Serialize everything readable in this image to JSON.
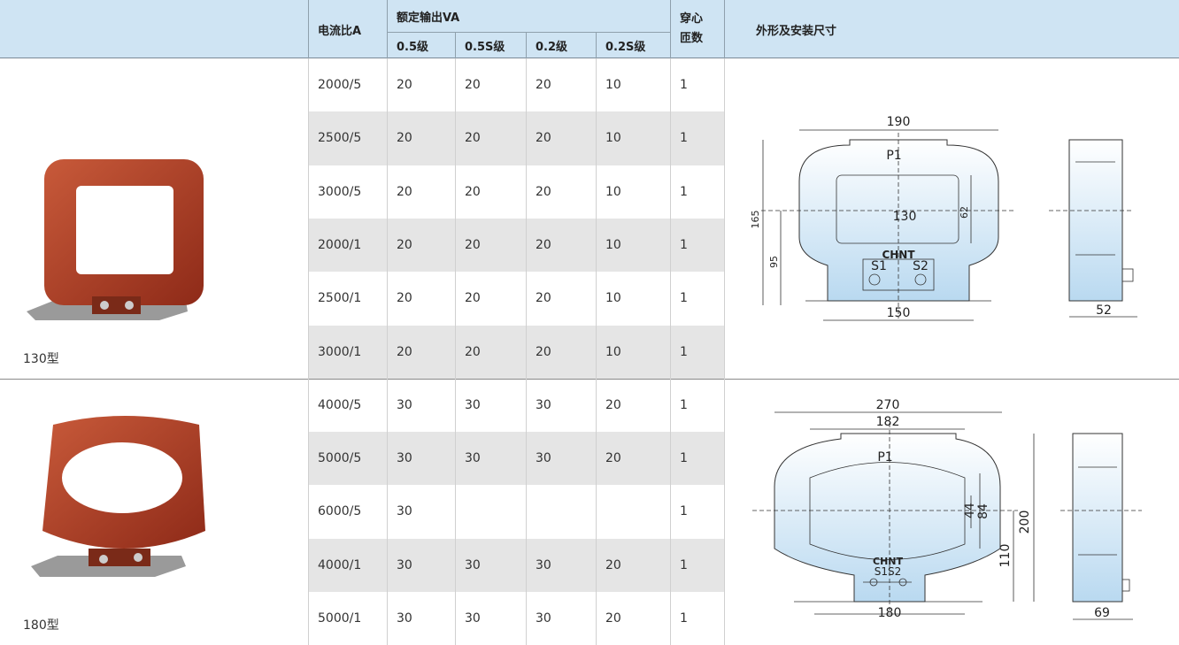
{
  "header": {
    "ratio": "电流比A",
    "rated": "额定输出VA",
    "classes": [
      "0.5级",
      "0.5S级",
      "0.2级",
      "0.2S级"
    ],
    "turns": [
      "穿心",
      "匝数"
    ],
    "dims": "外形及安装尺寸"
  },
  "groups": [
    {
      "label": "130型",
      "rows": [
        [
          "2000/5",
          "20",
          "20",
          "20",
          "10",
          "1"
        ],
        [
          "2500/5",
          "20",
          "20",
          "20",
          "10",
          "1"
        ],
        [
          "3000/5",
          "20",
          "20",
          "20",
          "10",
          "1"
        ],
        [
          "2000/1",
          "20",
          "20",
          "20",
          "10",
          "1"
        ],
        [
          "2500/1",
          "20",
          "20",
          "20",
          "10",
          "1"
        ],
        [
          "3000/1",
          "20",
          "20",
          "20",
          "10",
          "1"
        ]
      ],
      "dims": {
        "width": "190",
        "height": "165",
        "center": "95",
        "window_w": "130",
        "window_h": "62",
        "base": "150",
        "depth": "52",
        "p1": "P1",
        "brand": "CHNT",
        "s1": "S1",
        "s2": "S2"
      }
    },
    {
      "label": "180型",
      "rows": [
        [
          "4000/5",
          "30",
          "30",
          "30",
          "20",
          "1"
        ],
        [
          "5000/5",
          "30",
          "30",
          "30",
          "20",
          "1"
        ],
        [
          "6000/5",
          "30",
          null,
          null,
          null,
          "1"
        ],
        [
          "4000/1",
          "30",
          "30",
          "30",
          "20",
          "1"
        ],
        [
          "5000/1",
          "30",
          "30",
          "30",
          "20",
          "1"
        ]
      ],
      "dims": {
        "width": "270",
        "window_w": "182",
        "height": "200",
        "center": "110",
        "window_h1": "44",
        "window_h2": "84",
        "base": "180",
        "depth": "69",
        "p1": "P1",
        "brand": "CHNT",
        "s1s2": "S1S2"
      }
    }
  ]
}
